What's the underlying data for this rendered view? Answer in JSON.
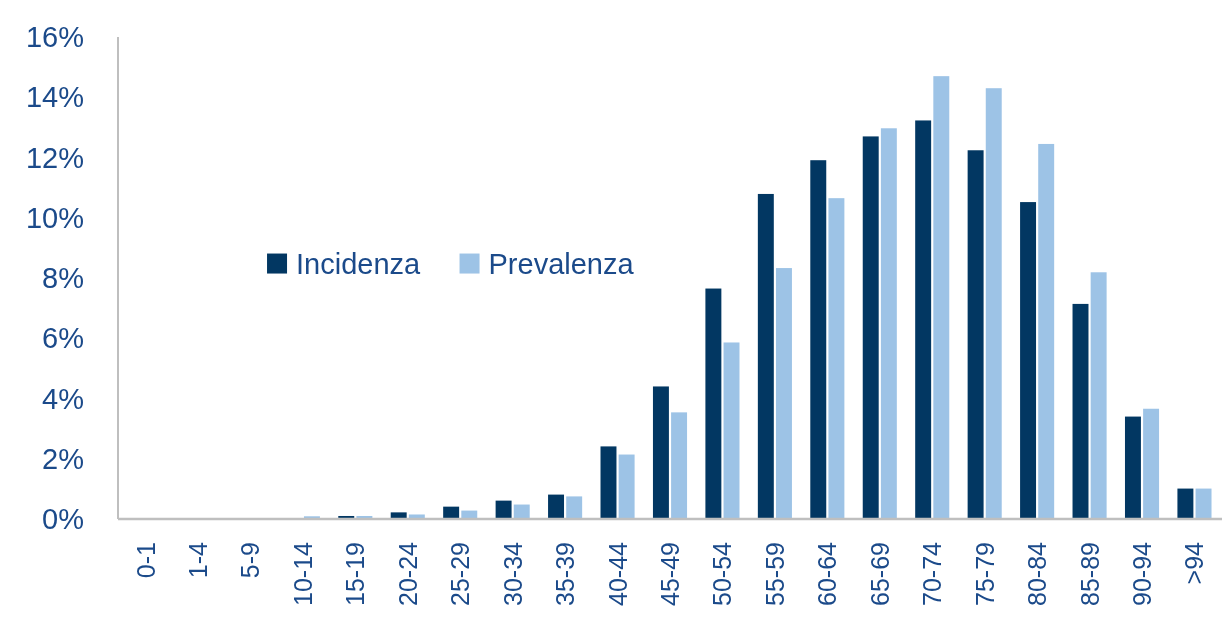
{
  "chart_data": {
    "type": "bar",
    "categories": [
      "0-1",
      "1-4",
      "5-9",
      "10-14",
      "15-19",
      "20-24",
      "25-29",
      "30-34",
      "35-39",
      "40-44",
      "45-49",
      "50-54",
      "55-59",
      "60-64",
      "65-69",
      "70-74",
      "75-79",
      "80-84",
      "85-89",
      "90-94",
      ">94"
    ],
    "series": [
      {
        "name": "Incidenza",
        "color": "#023762",
        "values": [
          0,
          0,
          0,
          0,
          0.1,
          0.22,
          0.41,
          0.61,
          0.81,
          2.41,
          4.4,
          7.65,
          10.79,
          11.91,
          12.7,
          13.23,
          12.24,
          10.52,
          7.14,
          3.4,
          1.01
        ]
      },
      {
        "name": "Prevalenza",
        "color": "#9dc3e6",
        "values": [
          0,
          0,
          0,
          0.09,
          0.1,
          0.15,
          0.28,
          0.48,
          0.75,
          2.14,
          3.54,
          5.86,
          8.33,
          10.65,
          12.97,
          14.7,
          14.3,
          12.45,
          8.19,
          3.66,
          1.01
        ]
      }
    ],
    "ylim": [
      0,
      16
    ],
    "yticks": [
      {
        "value": 0,
        "label": "0%"
      },
      {
        "value": 2,
        "label": "2%"
      },
      {
        "value": 4,
        "label": "4%"
      },
      {
        "value": 6,
        "label": "6%"
      },
      {
        "value": 8,
        "label": "8%"
      },
      {
        "value": 10,
        "label": "10%"
      },
      {
        "value": 12,
        "label": "12%"
      },
      {
        "value": 14,
        "label": "14%"
      },
      {
        "value": 16,
        "label": "16%"
      }
    ],
    "legend": "left"
  }
}
